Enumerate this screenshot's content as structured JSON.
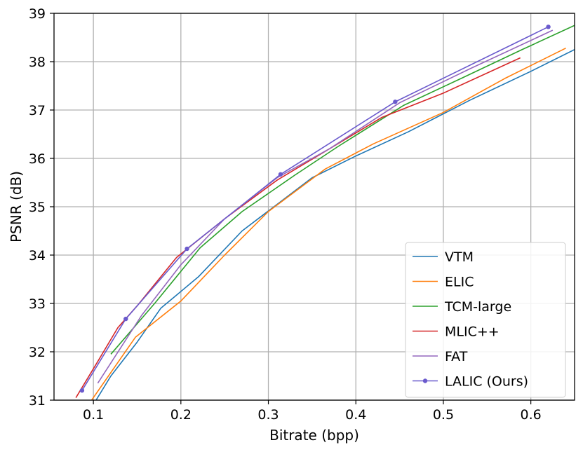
{
  "chart_data": {
    "type": "line",
    "xlabel": "Bitrate (bpp)",
    "ylabel": "PSNR (dB)",
    "xlim": [
      0.055,
      0.65
    ],
    "ylim": [
      31,
      39
    ],
    "xticks": [
      0.1,
      0.2,
      0.3,
      0.4,
      0.5,
      0.6
    ],
    "xtick_labels": [
      "0.1",
      "0.2",
      "0.3",
      "0.4",
      "0.5",
      "0.6"
    ],
    "yticks": [
      31,
      32,
      33,
      34,
      35,
      36,
      37,
      38,
      39
    ],
    "ytick_labels": [
      "31",
      "32",
      "33",
      "34",
      "35",
      "36",
      "37",
      "38",
      "39"
    ],
    "grid": true,
    "legend_position": "lower-right",
    "series": [
      {
        "name": "VTM",
        "color": "#1f77b4",
        "marker": "none",
        "x": [
          0.098,
          0.12,
          0.15,
          0.177,
          0.22,
          0.27,
          0.35,
          0.4,
          0.46,
          0.53,
          0.6,
          0.65
        ],
        "y": [
          30.85,
          31.5,
          32.2,
          32.9,
          33.55,
          34.5,
          35.6,
          36.05,
          36.55,
          37.2,
          37.8,
          38.25
        ]
      },
      {
        "name": "ELIC",
        "color": "#ff7f0e",
        "marker": "none",
        "x": [
          0.098,
          0.148,
          0.2,
          0.25,
          0.3,
          0.365,
          0.42,
          0.5,
          0.57,
          0.64
        ],
        "y": [
          31.0,
          32.3,
          33.05,
          34.0,
          34.9,
          35.78,
          36.3,
          36.95,
          37.65,
          38.28
        ]
      },
      {
        "name": "TCM-large",
        "color": "#2ca02c",
        "marker": "none",
        "x": [
          0.12,
          0.17,
          0.222,
          0.27,
          0.33,
          0.38,
          0.455,
          0.52,
          0.59,
          0.65
        ],
        "y": [
          31.95,
          33.0,
          34.15,
          34.9,
          35.65,
          36.25,
          37.1,
          37.65,
          38.25,
          38.75
        ]
      },
      {
        "name": "MLIC++",
        "color": "#d62728",
        "marker": "none",
        "x": [
          0.08,
          0.105,
          0.128,
          0.15,
          0.195,
          0.25,
          0.31,
          0.37,
          0.43,
          0.5,
          0.588
        ],
        "y": [
          31.05,
          31.8,
          32.5,
          32.95,
          33.95,
          34.75,
          35.55,
          36.2,
          36.85,
          37.35,
          38.08
        ]
      },
      {
        "name": "FAT",
        "color": "#9467bd",
        "marker": "none",
        "x": [
          0.105,
          0.13,
          0.155,
          0.2,
          0.25,
          0.31,
          0.37,
          0.45,
          0.53,
          0.625
        ],
        "y": [
          31.35,
          32.05,
          32.75,
          33.8,
          34.75,
          35.6,
          36.2,
          37.15,
          37.85,
          38.65
        ]
      },
      {
        "name": "LALIC (Ours)",
        "color": "#6a5acd",
        "marker": "circle",
        "x": [
          0.087,
          0.137,
          0.207,
          0.314,
          0.445,
          0.62
        ],
        "y": [
          31.2,
          32.68,
          34.13,
          35.67,
          37.17,
          38.72
        ]
      }
    ]
  }
}
